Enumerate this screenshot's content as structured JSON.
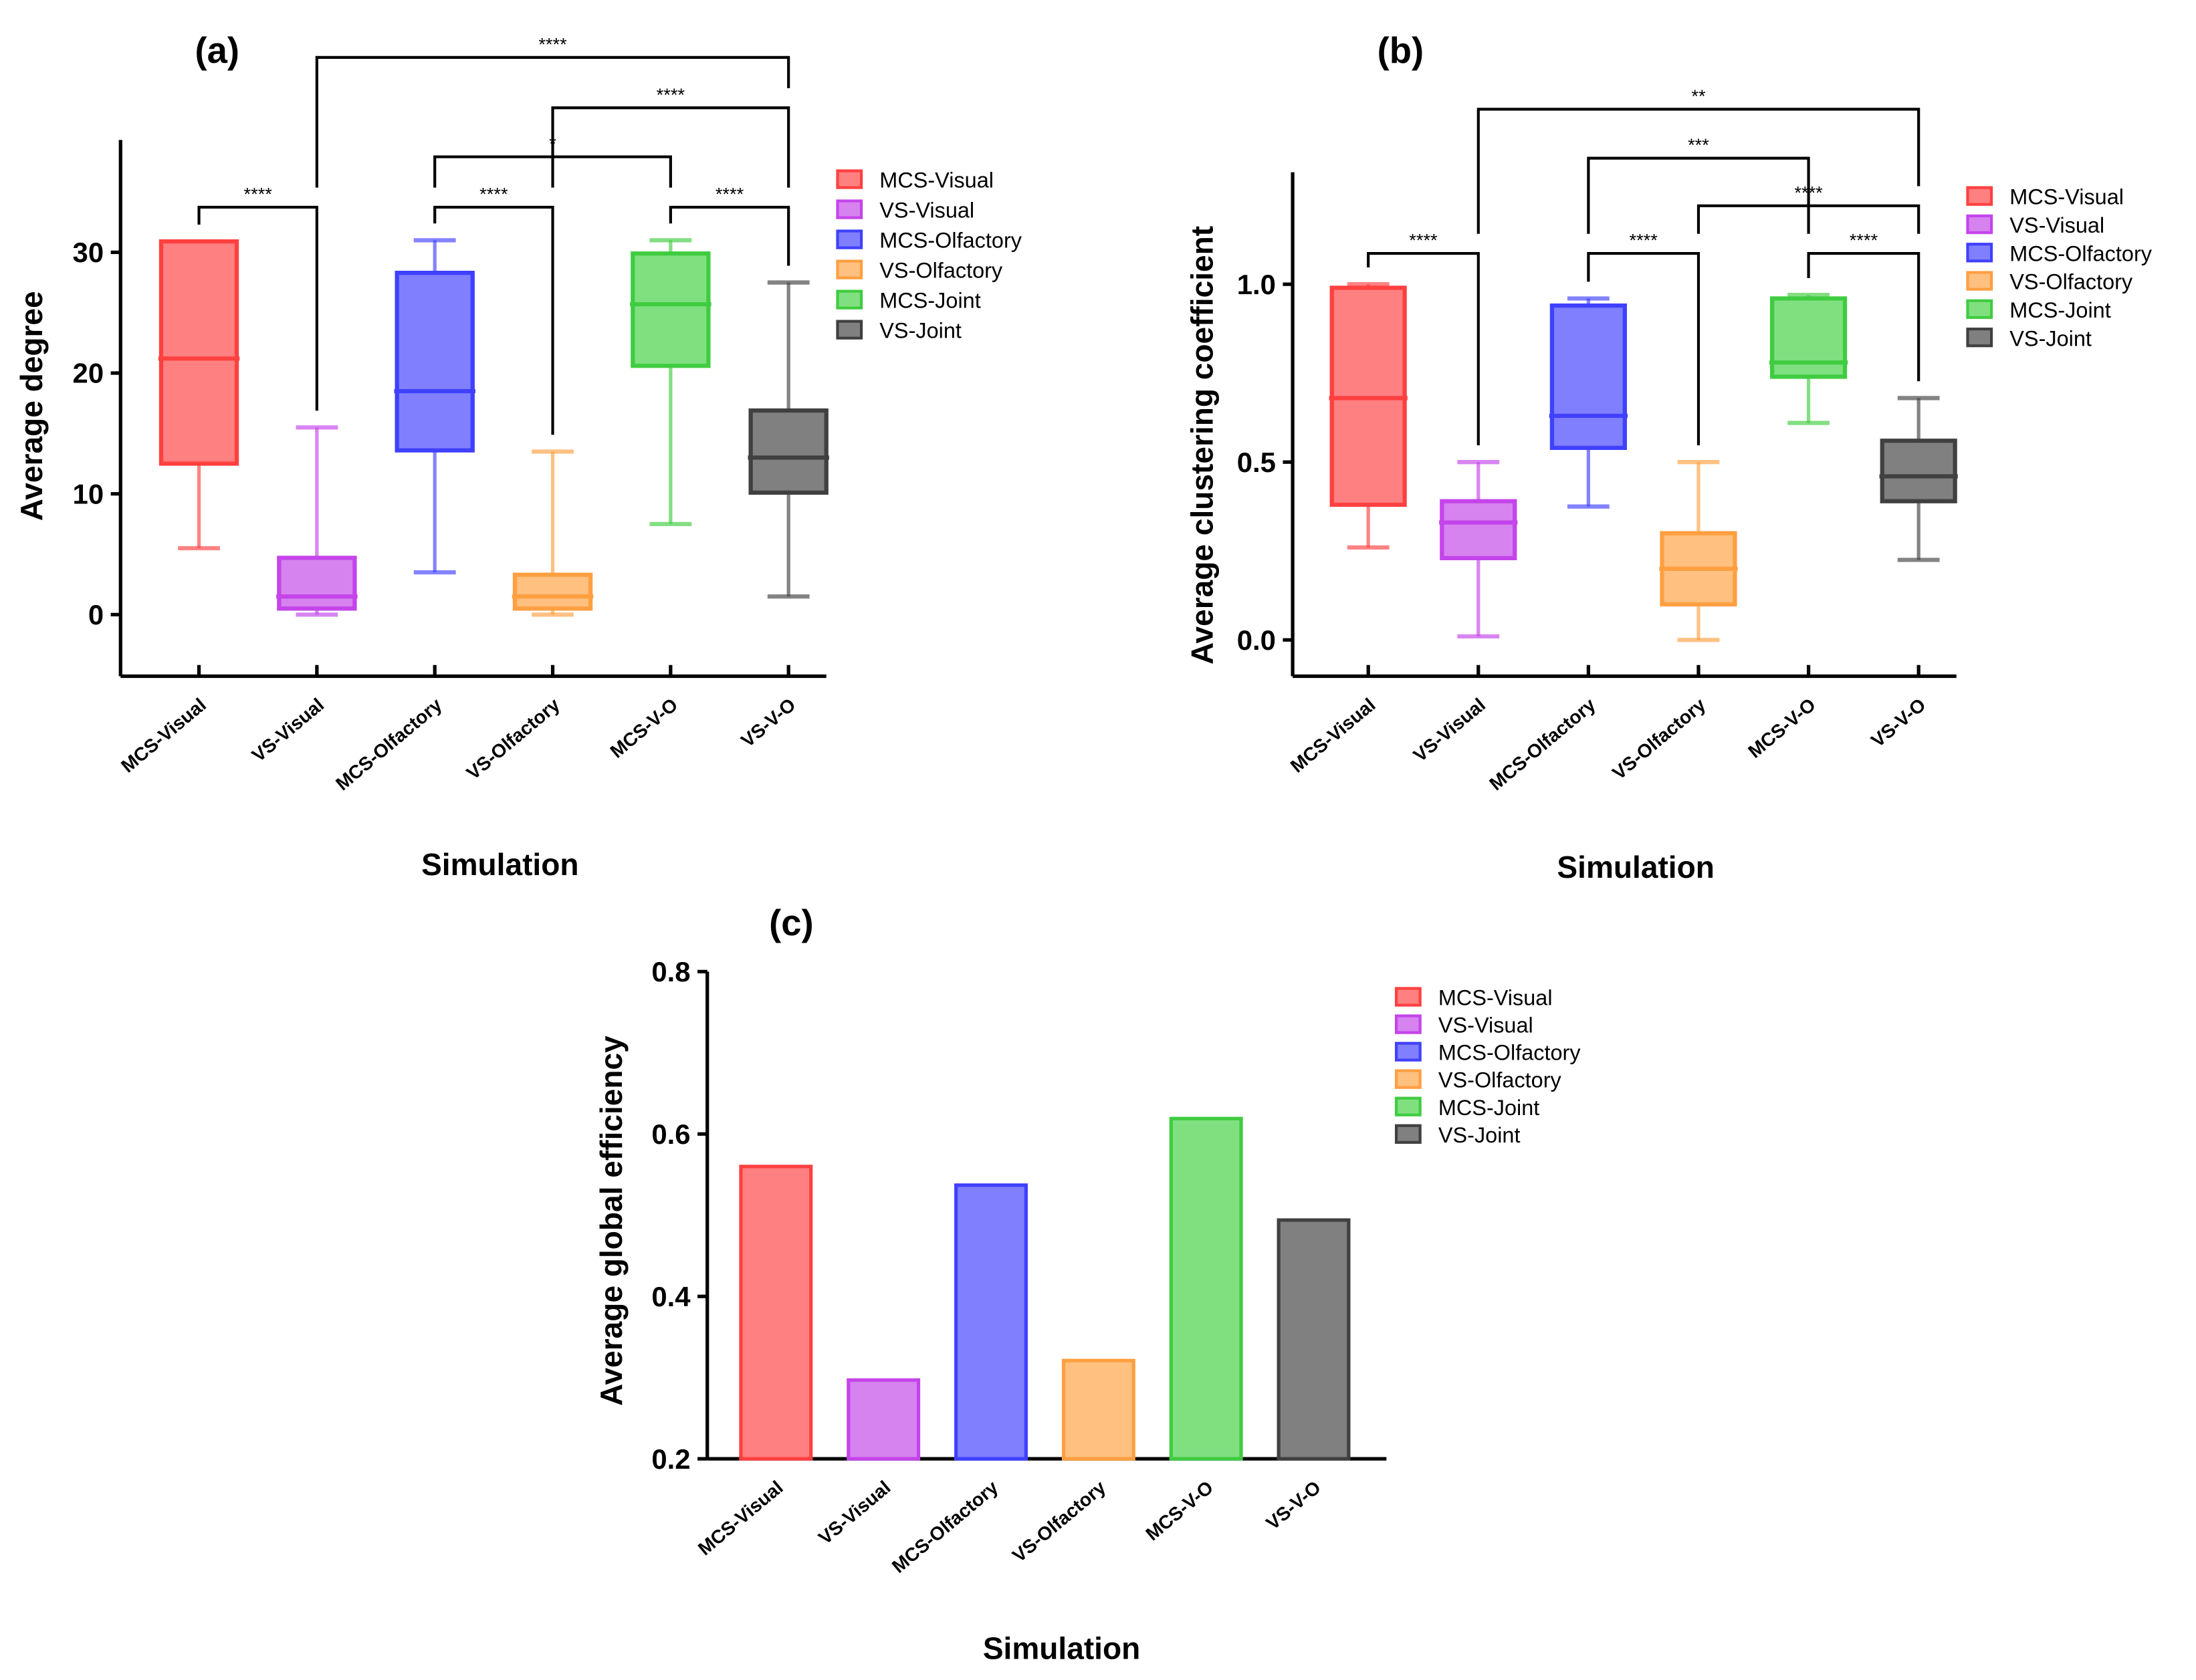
{
  "chart_data": [
    {
      "type": "box",
      "panel_label": "(a)",
      "title": "",
      "xlabel": "Simulation",
      "ylabel": "Average degree",
      "ylim": [
        -5,
        39
      ],
      "yticks": [
        "0",
        "10",
        "20",
        "30"
      ],
      "categories": [
        "MCS-Visual",
        "VS-Visual",
        "MCS-Olfactory",
        "VS-Olfactory",
        "MCS-V-O",
        "VS-V-O"
      ],
      "series": [
        {
          "name": "MCS-Visual",
          "min": 5.5,
          "q1": 12.5,
          "median": 21.2,
          "q3": 30.9,
          "max": 30.9
        },
        {
          "name": "VS-Visual",
          "min": 0,
          "q1": 0.5,
          "median": 1.5,
          "q3": 4.7,
          "max": 15.5
        },
        {
          "name": "MCS-Olfactory",
          "min": 3.5,
          "q1": 13.6,
          "median": 18.5,
          "q3": 28.3,
          "max": 31.0
        },
        {
          "name": "VS-Olfactory",
          "min": 0,
          "q1": 0.5,
          "median": 1.5,
          "q3": 3.3,
          "max": 13.5
        },
        {
          "name": "MCS-Joint",
          "min": 7.5,
          "q1": 20.6,
          "median": 25.7,
          "q3": 29.9,
          "max": 31.0
        },
        {
          "name": "VS-Joint",
          "min": 1.5,
          "q1": 10.1,
          "median": 13.0,
          "q3": 16.9,
          "max": 27.5
        }
      ],
      "significance": [
        {
          "from": 0,
          "to": 1,
          "label": "****",
          "level": 0
        },
        {
          "from": 2,
          "to": 3,
          "label": "****",
          "level": 0
        },
        {
          "from": 4,
          "to": 5,
          "label": "****",
          "level": 0
        },
        {
          "from": 2,
          "to": 4,
          "label": "*",
          "level": 1
        },
        {
          "from": 3,
          "to": 5,
          "label": "****",
          "level": 2
        },
        {
          "from": 1,
          "to": 5,
          "label": "****",
          "level": 3
        }
      ],
      "legend": [
        "MCS-Visual",
        "VS-Visual",
        "MCS-Olfactory",
        "VS-Olfactory",
        "MCS-Joint",
        "VS-Joint"
      ],
      "legend_position": "right"
    },
    {
      "type": "box",
      "panel_label": "(b)",
      "title": "",
      "xlabel": "Simulation",
      "ylabel": "Average clustering coefficient",
      "ylim": [
        -0.1,
        1.3
      ],
      "yticks": [
        "0.0",
        "0.5",
        "1.0"
      ],
      "categories": [
        "MCS-Visual",
        "VS-Visual",
        "MCS-Olfactory",
        "VS-Olfactory",
        "MCS-V-O",
        "VS-V-O"
      ],
      "series": [
        {
          "name": "MCS-Visual",
          "min": 0.26,
          "q1": 0.38,
          "median": 0.68,
          "q3": 0.99,
          "max": 1.0
        },
        {
          "name": "VS-Visual",
          "min": 0.01,
          "q1": 0.23,
          "median": 0.33,
          "q3": 0.39,
          "max": 0.5
        },
        {
          "name": "MCS-Olfactory",
          "min": 0.375,
          "q1": 0.54,
          "median": 0.63,
          "q3": 0.94,
          "max": 0.96
        },
        {
          "name": "VS-Olfactory",
          "min": 0.0,
          "q1": 0.1,
          "median": 0.2,
          "q3": 0.3,
          "max": 0.5
        },
        {
          "name": "MCS-Joint",
          "min": 0.61,
          "q1": 0.74,
          "median": 0.78,
          "q3": 0.96,
          "max": 0.97
        },
        {
          "name": "VS-Joint",
          "min": 0.225,
          "q1": 0.39,
          "median": 0.46,
          "q3": 0.56,
          "max": 0.68
        }
      ],
      "significance": [
        {
          "from": 0,
          "to": 1,
          "label": "****",
          "level": 0
        },
        {
          "from": 2,
          "to": 3,
          "label": "****",
          "level": 0
        },
        {
          "from": 4,
          "to": 5,
          "label": "****",
          "level": 0
        },
        {
          "from": 3,
          "to": 5,
          "label": "****",
          "level": 1
        },
        {
          "from": 2,
          "to": 4,
          "label": "***",
          "level": 2
        },
        {
          "from": 1,
          "to": 5,
          "label": "**",
          "level": 3
        }
      ],
      "legend": [
        "MCS-Visual",
        "VS-Visual",
        "MCS-Olfactory",
        "VS-Olfactory",
        "MCS-Joint",
        "VS-Joint"
      ],
      "legend_position": "right"
    },
    {
      "type": "bar",
      "panel_label": "(c)",
      "title": "",
      "xlabel": "Simulation",
      "ylabel": "Average global efficiency",
      "ylim": [
        0.2,
        0.8
      ],
      "yticks": [
        "0.2",
        "0.4",
        "0.6",
        "0.8"
      ],
      "categories": [
        "MCS-Visual",
        "VS-Visual",
        "MCS-Olfactory",
        "VS-Olfactory",
        "MCS-V-O",
        "VS-V-O"
      ],
      "values": [
        0.56,
        0.297,
        0.537,
        0.321,
        0.619,
        0.494
      ],
      "legend": [
        "MCS-Visual",
        "VS-Visual",
        "MCS-Olfactory",
        "VS-Olfactory",
        "MCS-Joint",
        "VS-Joint"
      ],
      "legend_position": "right"
    }
  ],
  "colors": {
    "stroke": [
      "#ff4040",
      "#c444ea",
      "#4040ff",
      "#ff9f40",
      "#40cc40",
      "#404040"
    ],
    "fill": [
      "#ff8080",
      "#d682ef",
      "#8080ff",
      "#ffc080",
      "#80e080",
      "#808080"
    ]
  }
}
